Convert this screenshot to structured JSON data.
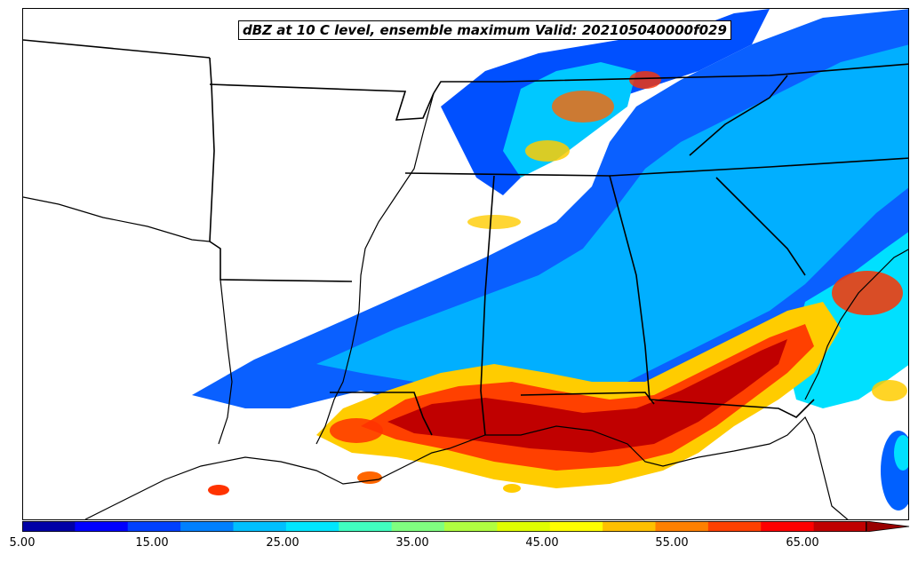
{
  "title": "dBZ at 10 C level, ensemble maximum Valid: 202105040000f029",
  "colorbar": {
    "colors": [
      "#0000a6",
      "#0000ff",
      "#0040ff",
      "#0080ff",
      "#00c0ff",
      "#00e6ff",
      "#40ffc0",
      "#80ff80",
      "#b0ff40",
      "#e0ff00",
      "#ffff00",
      "#ffc000",
      "#ff8000",
      "#ff4000",
      "#ff0000",
      "#c00000",
      "#990000"
    ],
    "ticks": [
      "5.00",
      "15.00",
      "25.00",
      "35.00",
      "45.00",
      "55.00",
      "65.00"
    ],
    "extend": "max"
  }
}
